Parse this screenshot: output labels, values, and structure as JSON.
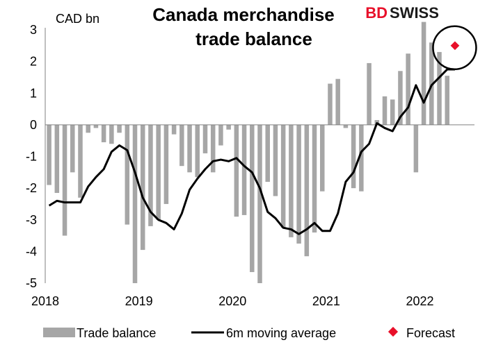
{
  "brand": {
    "logo_left": "BD",
    "logo_right": "SWISS",
    "accent": "#e8102a"
  },
  "chart_data": {
    "type": "bar",
    "title_lines": [
      "Canada merchandise",
      "trade balance"
    ],
    "unit_label": "CAD bn",
    "ylim": [
      -5,
      3
    ],
    "yticks": [
      3,
      2,
      1,
      0,
      -1,
      -2,
      -3,
      -4,
      -5
    ],
    "xticks": [
      "2018",
      "2019",
      "2020",
      "2021",
      "2022"
    ],
    "x_start": "2018-01",
    "grid": false,
    "legend": {
      "placement": "bottom",
      "entries": [
        "Trade balance",
        "6m moving average",
        "Forecast"
      ]
    },
    "colors": {
      "bars": "#a6a6a6",
      "line": "#000000",
      "forecast": "#e8102a",
      "axis": "#7f7f7f"
    },
    "series": [
      {
        "name": "Trade balance",
        "type": "bar",
        "values": [
          -1.9,
          -2.15,
          -3.5,
          -1.5,
          -2.3,
          -0.25,
          -0.1,
          -0.55,
          -0.6,
          -0.25,
          -3.15,
          -5.0,
          -3.95,
          -3.2,
          -3.0,
          -2.5,
          -0.3,
          -1.3,
          -1.5,
          -1.65,
          -0.9,
          -1.5,
          -0.65,
          -0.15,
          -2.9,
          -2.85,
          -4.65,
          -5.0,
          -1.8,
          -2.25,
          -3.25,
          -3.55,
          -3.75,
          -4.15,
          -3.4,
          -2.1,
          1.3,
          1.45,
          -0.1,
          -2.0,
          -2.1,
          1.95,
          0.15,
          0.9,
          0.8,
          1.7,
          2.25,
          -1.5,
          3.25,
          2.6,
          2.3,
          1.55
        ]
      },
      {
        "name": "6m moving average",
        "type": "line",
        "values": [
          -2.55,
          -2.4,
          -2.45,
          -2.45,
          -2.45,
          -1.95,
          -1.65,
          -1.4,
          -0.85,
          -0.65,
          -0.8,
          -1.5,
          -2.3,
          -2.75,
          -3.0,
          -3.1,
          -3.3,
          -2.8,
          -2.05,
          -1.7,
          -1.4,
          -1.15,
          -1.1,
          -1.15,
          -1.05,
          -1.3,
          -1.5,
          -2.0,
          -2.75,
          -2.95,
          -3.25,
          -3.3,
          -3.45,
          -3.3,
          -3.1,
          -3.35,
          -3.35,
          -2.8,
          -1.8,
          -1.5,
          -0.85,
          -0.6,
          0.05,
          -0.1,
          -0.2,
          0.25,
          0.55,
          1.25,
          0.7,
          1.25,
          1.5,
          1.75,
          1.75
        ]
      },
      {
        "name": "Forecast",
        "type": "point",
        "x": "2022-05",
        "value": 2.5
      }
    ]
  }
}
